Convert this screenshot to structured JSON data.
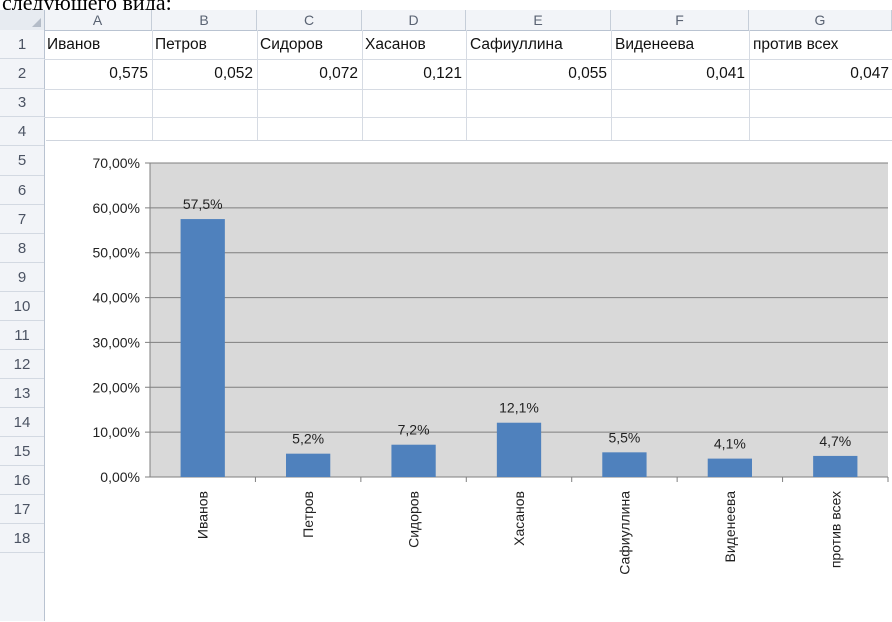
{
  "caption": "следующего вида:",
  "columns": [
    "A",
    "B",
    "C",
    "D",
    "E",
    "F",
    "G"
  ],
  "rows": [
    "1",
    "2",
    "3",
    "4",
    "5",
    "6",
    "7",
    "8",
    "9",
    "10",
    "11",
    "12",
    "13",
    "14",
    "15",
    "16",
    "17",
    "18"
  ],
  "row1": {
    "A": "Иванов",
    "B": "Петров",
    "C": "Сидоров",
    "D": "Хасанов",
    "E": "Сафиуллина",
    "F": "Виденеева",
    "G": "против всех"
  },
  "row2": {
    "A": "0,575",
    "B": "0,052",
    "C": "0,072",
    "D": "0,121",
    "E": "0,055",
    "F": "0,041",
    "G": "0,047"
  },
  "colors": {
    "bar": "#4f81bd",
    "plot_bg": "#d9d9d9",
    "grid": "#7f7f7f"
  },
  "chart_data": {
    "type": "bar",
    "categories": [
      "Иванов",
      "Петров",
      "Сидоров",
      "Хасанов",
      "Сафиуллина",
      "Виденеева",
      "против всех"
    ],
    "values": [
      0.575,
      0.052,
      0.072,
      0.121,
      0.055,
      0.041,
      0.047
    ],
    "data_labels": [
      "57,5%",
      "5,2%",
      "7,2%",
      "12,1%",
      "5,5%",
      "4,1%",
      "4,7%"
    ],
    "y_ticks": [
      "0,00%",
      "10,00%",
      "20,00%",
      "30,00%",
      "40,00%",
      "50,00%",
      "60,00%",
      "70,00%"
    ],
    "ylim": [
      0,
      0.7
    ],
    "grid": true,
    "legend": "none"
  }
}
